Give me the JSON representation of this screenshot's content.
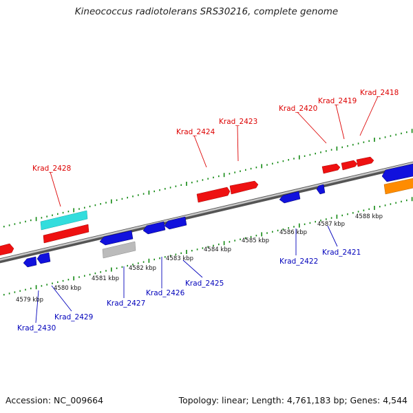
{
  "title": "Kineococcus radiotolerans SRS30216, complete genome",
  "footer": {
    "accession": "Accession: NC_009664",
    "summary": "Topology: linear; Length: 4,761,183 bp; Genes: 4,544"
  },
  "colors": {
    "forward_gene": "#ee1111",
    "reverse_gene": "#1111dd",
    "rna_gene": "#33dddd",
    "pseudo_gene": "#bbbbbb",
    "other_gene": "#ff8c00",
    "backbone": "#8a8a8a",
    "tick": "#118811",
    "label_top": "#dd0000",
    "label_bottom": "#0000bb"
  },
  "scale_labels": [
    "4579 kbp",
    "4580 kbp",
    "4581 kbp",
    "4582 kbp",
    "4583 kbp",
    "4584 kbp",
    "4585 kbp",
    "4586 kbp",
    "4587 kbp",
    "4588 kbp"
  ],
  "genes_top": [
    {
      "id": "Krad_2418",
      "strand": "+"
    },
    {
      "id": "Krad_2419",
      "strand": "+"
    },
    {
      "id": "Krad_2420",
      "strand": "+"
    },
    {
      "id": "Krad_2423",
      "strand": "+"
    },
    {
      "id": "Krad_2424",
      "strand": "+"
    },
    {
      "id": "Krad_2428",
      "strand": "+"
    }
  ],
  "genes_bottom": [
    {
      "id": "Krad_2421",
      "strand": "-"
    },
    {
      "id": "Krad_2422",
      "strand": "-"
    },
    {
      "id": "Krad_2425",
      "strand": "-"
    },
    {
      "id": "Krad_2426",
      "strand": "-"
    },
    {
      "id": "Krad_2427",
      "strand": "-"
    },
    {
      "id": "Krad_2429",
      "strand": "-"
    },
    {
      "id": "Krad_2430",
      "strand": "-"
    }
  ]
}
